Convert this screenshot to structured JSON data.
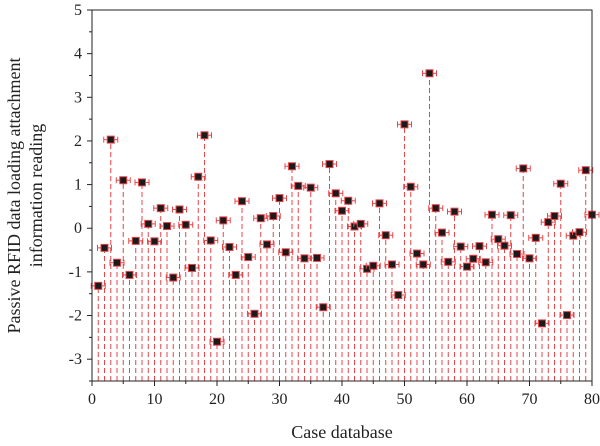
{
  "chart_data": {
    "type": "scatter",
    "title": "",
    "xlabel": "Case database",
    "ylabel_lines": [
      "Passive RFID data loading attachment",
      "information reading"
    ],
    "xlim": [
      0,
      80
    ],
    "ylim": [
      -3.5,
      5
    ],
    "xticks": [
      0,
      10,
      20,
      30,
      40,
      50,
      60,
      70,
      80
    ],
    "yticks": [
      -3,
      -2,
      -1,
      0,
      1,
      2,
      3,
      4,
      5
    ],
    "grid": false,
    "legend": "none",
    "colors": {
      "drop_line": "#e8454a",
      "marker_fill": "#1a1a1a",
      "marker_edge": "#e8454a",
      "errorbar": "#e8454a"
    },
    "drop_baseline": -3.5,
    "points": [
      {
        "x": 1,
        "y": -1.32
      },
      {
        "x": 2,
        "y": -0.45
      },
      {
        "x": 3,
        "y": 2.03
      },
      {
        "x": 4,
        "y": -0.79
      },
      {
        "x": 5,
        "y": 1.1
      },
      {
        "x": 6,
        "y": -1.07
      },
      {
        "x": 7,
        "y": -0.29
      },
      {
        "x": 8,
        "y": 1.05
      },
      {
        "x": 9,
        "y": 0.1
      },
      {
        "x": 10,
        "y": -0.3
      },
      {
        "x": 11,
        "y": 0.46
      },
      {
        "x": 12,
        "y": 0.05
      },
      {
        "x": 13,
        "y": -1.13
      },
      {
        "x": 14,
        "y": 0.43
      },
      {
        "x": 15,
        "y": 0.08
      },
      {
        "x": 16,
        "y": -0.91
      },
      {
        "x": 17,
        "y": 1.18
      },
      {
        "x": 18,
        "y": 2.13
      },
      {
        "x": 19,
        "y": -0.28
      },
      {
        "x": 20,
        "y": -2.6
      },
      {
        "x": 21,
        "y": 0.18
      },
      {
        "x": 22,
        "y": -0.43
      },
      {
        "x": 23,
        "y": -1.07
      },
      {
        "x": 24,
        "y": 0.62
      },
      {
        "x": 25,
        "y": -0.66
      },
      {
        "x": 26,
        "y": -1.96
      },
      {
        "x": 27,
        "y": 0.23
      },
      {
        "x": 28,
        "y": -0.37
      },
      {
        "x": 29,
        "y": 0.28
      },
      {
        "x": 30,
        "y": 0.69
      },
      {
        "x": 31,
        "y": -0.55
      },
      {
        "x": 32,
        "y": 1.42
      },
      {
        "x": 33,
        "y": 0.97
      },
      {
        "x": 34,
        "y": -0.69
      },
      {
        "x": 35,
        "y": 0.93
      },
      {
        "x": 36,
        "y": -0.68
      },
      {
        "x": 37,
        "y": -1.81
      },
      {
        "x": 38,
        "y": 1.47
      },
      {
        "x": 39,
        "y": 0.8
      },
      {
        "x": 40,
        "y": 0.4
      },
      {
        "x": 41,
        "y": 0.63
      },
      {
        "x": 42,
        "y": 0.04
      },
      {
        "x": 43,
        "y": 0.1
      },
      {
        "x": 44,
        "y": -0.93
      },
      {
        "x": 45,
        "y": -0.86
      },
      {
        "x": 46,
        "y": 0.57
      },
      {
        "x": 47,
        "y": -0.16
      },
      {
        "x": 48,
        "y": -0.83
      },
      {
        "x": 49,
        "y": -1.53
      },
      {
        "x": 50,
        "y": 2.38
      },
      {
        "x": 51,
        "y": 0.95
      },
      {
        "x": 52,
        "y": -0.58
      },
      {
        "x": 53,
        "y": -0.83
      },
      {
        "x": 54,
        "y": 3.55
      },
      {
        "x": 55,
        "y": 0.46
      },
      {
        "x": 56,
        "y": -0.1
      },
      {
        "x": 57,
        "y": -0.77
      },
      {
        "x": 58,
        "y": 0.38
      },
      {
        "x": 59,
        "y": -0.42
      },
      {
        "x": 60,
        "y": -0.88
      },
      {
        "x": 61,
        "y": -0.7
      },
      {
        "x": 62,
        "y": -0.41
      },
      {
        "x": 63,
        "y": -0.78
      },
      {
        "x": 64,
        "y": 0.31
      },
      {
        "x": 65,
        "y": -0.25
      },
      {
        "x": 66,
        "y": -0.4
      },
      {
        "x": 67,
        "y": 0.3
      },
      {
        "x": 68,
        "y": -0.59
      },
      {
        "x": 69,
        "y": 1.37
      },
      {
        "x": 70,
        "y": -0.69
      },
      {
        "x": 71,
        "y": -0.22
      },
      {
        "x": 72,
        "y": -2.18
      },
      {
        "x": 73,
        "y": 0.14
      },
      {
        "x": 74,
        "y": 0.28
      },
      {
        "x": 75,
        "y": 1.02
      },
      {
        "x": 76,
        "y": -1.99
      },
      {
        "x": 77,
        "y": -0.17
      },
      {
        "x": 78,
        "y": -0.09
      },
      {
        "x": 79,
        "y": 1.33
      },
      {
        "x": 80,
        "y": 0.31
      }
    ]
  }
}
